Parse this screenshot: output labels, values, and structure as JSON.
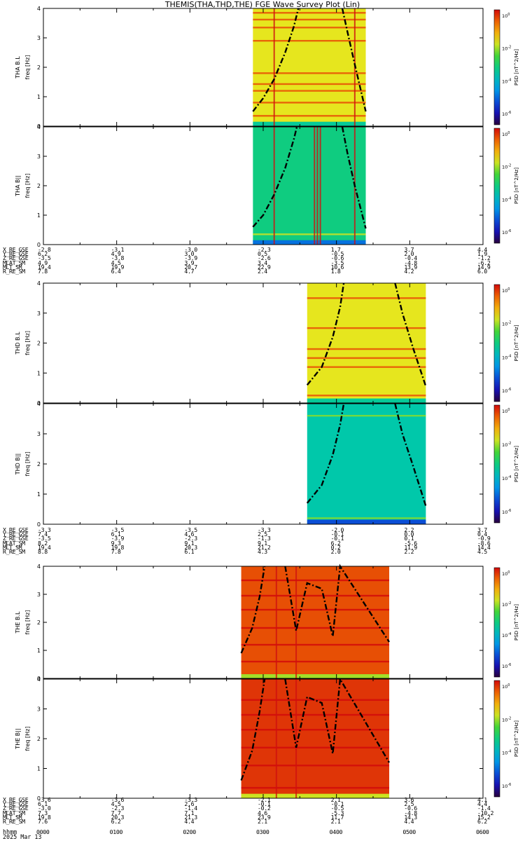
{
  "title": "THEMIS(THA,THD,THE) FGE Wave Survey Plot (Lin)",
  "x_ticks": [
    "0000",
    "0100",
    "0200",
    "0300",
    "0400",
    "0500",
    "0600"
  ],
  "footer": {
    "time_label": "hhmm",
    "date": "2025 Mar 13"
  },
  "colors": {
    "background": "#ffffff",
    "axis": "#000000"
  },
  "ephemeris_rows": [
    "X_RE_GSE",
    "Y_RE_GSE",
    "Z_RE_GSE",
    "MLAT_SM",
    "MLT_SM",
    "R_RE_SM"
  ],
  "ephemeris": [
    {
      "probe": "THA",
      "values": [
        [
          "-2.8",
          "-3.1",
          "-3.0",
          "-2.3",
          "1.7",
          "3.7",
          "4.4"
        ],
        [
          "6.2",
          "4.9",
          "3.0",
          "0.5",
          "-0.5",
          "2.0",
          "1.9"
        ],
        [
          "-3.5",
          "-3.8",
          "-3.9",
          "-2.6",
          "-0.6",
          "-0.4",
          "-1.2"
        ],
        [
          "4.9",
          "4.5",
          "3.9",
          "3.4",
          "-3.5",
          "-4.8",
          "-6.2"
        ],
        [
          "19.4",
          "19.9",
          "20.7",
          "22.9",
          "10.6",
          "13.9",
          "14.9"
        ],
        [
          "7.8",
          "6.4",
          "4.7",
          "2.4",
          "1.8",
          "4.2",
          "6.0"
        ]
      ]
    },
    {
      "probe": "THD",
      "values": [
        [
          "-3.3",
          "-3.5",
          "-3.5",
          "-3.3",
          "-2.0",
          "2.2",
          "3.7"
        ],
        [
          "7.4",
          "6.1",
          "4.6",
          "2.5",
          "-0.1",
          "0.0",
          "0.4"
        ],
        [
          "-3.5",
          "-3.9",
          "-2.3",
          "-1.3",
          "-0.1",
          "0.1",
          "-0.9"
        ],
        [
          "8.2",
          "9.3",
          "9.1",
          "9.1",
          "6.2",
          "-5.6",
          "-8.6"
        ],
        [
          "19.4",
          "19.8",
          "20.3",
          "21.2",
          "0.2",
          "11.9",
          "14.4"
        ],
        [
          "8.8",
          "7.8",
          "6.1",
          "4.3",
          "2.0",
          "2.2",
          "4.5"
        ]
      ]
    },
    {
      "probe": "THE",
      "values": [
        [
          "-3.6",
          "-3.6",
          "-3.3",
          "-2.1",
          "2.1",
          "3.6",
          "4.1"
        ],
        [
          "6.1",
          "4.5",
          "2.6",
          "-0.1",
          "-0.1",
          "2.5",
          "4.4"
        ],
        [
          "-3.0",
          "-2.3",
          "-1.4",
          "-0.2",
          "-0.5",
          "-0.6",
          "-1.4"
        ],
        [
          "7.3",
          "7.7",
          "7.1",
          "4.6",
          "-5.3",
          "-4.8",
          "-10.2"
        ],
        [
          "19.8",
          "20.3",
          "21.3",
          "23.9",
          "11.7",
          "14.3",
          "15.2"
        ],
        [
          "7.6",
          "6.2",
          "4.4",
          "2.1",
          "2.1",
          "4.4",
          "6.2"
        ]
      ]
    }
  ],
  "chart_data": [
    {
      "type": "heatmap",
      "panel": "THA B.L",
      "ylabel": [
        "THA B.L",
        "freq [Hz]"
      ],
      "colorbar_label": "PSD [nT^2/Hz]",
      "colorbar_ticks": [
        "10^0",
        "10^-2",
        "10^-4",
        "10^-6"
      ],
      "ylim": [
        0,
        4
      ],
      "yticks": [
        0,
        1,
        2,
        3,
        4
      ],
      "x_range_hours": [
        0,
        6
      ],
      "data_start_hour": 2.86,
      "data_end_hour": 4.4,
      "background_level": 0.72,
      "horizontal_lines_hz": [
        0.35,
        0.8,
        1.2,
        1.43,
        1.8,
        2.9,
        3.35,
        3.62,
        3.85
      ],
      "vertical_lines_hour": [
        3.15,
        4.25
      ],
      "gyro_curves_hour_hz": [
        [
          2.86,
          0.5
        ],
        [
          3.0,
          0.95
        ],
        [
          3.15,
          1.6
        ],
        [
          3.3,
          2.5
        ],
        [
          3.42,
          3.4
        ],
        [
          3.48,
          4.0
        ],
        [
          4.08,
          4.0
        ],
        [
          4.15,
          3.2
        ],
        [
          4.25,
          2.1
        ],
        [
          4.4,
          0.5
        ]
      ]
    },
    {
      "type": "heatmap",
      "panel": "THA B||",
      "ylabel": [
        "THA B||",
        "freq [Hz]"
      ],
      "colorbar_label": "PSD [nT^2/Hz]",
      "colorbar_ticks": [
        "10^0",
        "10^-2",
        "10^-4",
        "10^-6"
      ],
      "ylim": [
        0,
        4
      ],
      "yticks": [
        0,
        1,
        2,
        3,
        4
      ],
      "x_range_hours": [
        0,
        6
      ],
      "data_start_hour": 2.86,
      "data_end_hour": 4.4,
      "background_level": 0.5,
      "horizontal_lines_hz": [
        0.35
      ],
      "vertical_lines_hour": [
        3.15,
        3.7,
        3.74,
        3.78,
        4.25
      ],
      "gyro_curves_hour_hz": [
        [
          2.86,
          0.6
        ],
        [
          3.0,
          1.0
        ],
        [
          3.15,
          1.7
        ],
        [
          3.3,
          2.6
        ],
        [
          3.42,
          3.6
        ],
        [
          3.46,
          4.0
        ],
        [
          4.08,
          4.0
        ],
        [
          4.15,
          3.1
        ],
        [
          4.25,
          2.0
        ],
        [
          4.4,
          0.55
        ]
      ]
    },
    {
      "type": "heatmap",
      "panel": "THD B.L",
      "ylabel": [
        "THD B.L",
        "freq [Hz]"
      ],
      "colorbar_label": "PSD [nT^2/Hz]",
      "colorbar_ticks": [
        "10^0",
        "10^-2",
        "10^-4",
        "10^-6"
      ],
      "ylim": [
        0,
        4
      ],
      "yticks": [
        0,
        1,
        2,
        3,
        4
      ],
      "x_range_hours": [
        0,
        6
      ],
      "data_start_hour": 3.6,
      "data_end_hour": 5.22,
      "background_level": 0.72,
      "horizontal_lines_hz": [
        0.25,
        1.2,
        1.5,
        1.8,
        2.5,
        3.5
      ],
      "vertical_lines_hour": [],
      "gyro_curves_hour_hz": [
        [
          3.6,
          0.6
        ],
        [
          3.8,
          1.2
        ],
        [
          3.95,
          2.2
        ],
        [
          4.05,
          3.2
        ],
        [
          4.1,
          4.0
        ],
        [
          4.8,
          4.0
        ],
        [
          4.9,
          3.0
        ],
        [
          5.05,
          1.8
        ],
        [
          5.22,
          0.55
        ]
      ]
    },
    {
      "type": "heatmap",
      "panel": "THD B||",
      "ylabel": [
        "THD B||",
        "freq [Hz]"
      ],
      "colorbar_label": "PSD [nT^2/Hz]",
      "colorbar_ticks": [
        "10^0",
        "10^-2",
        "10^-4",
        "10^-6"
      ],
      "ylim": [
        0,
        4
      ],
      "yticks": [
        0,
        1,
        2,
        3,
        4
      ],
      "x_range_hours": [
        0,
        6
      ],
      "data_start_hour": 3.6,
      "data_end_hour": 5.22,
      "background_level": 0.45,
      "horizontal_lines_hz": [
        0.2,
        3.6
      ],
      "vertical_lines_hour": [],
      "gyro_curves_hour_hz": [
        [
          3.6,
          0.7
        ],
        [
          3.8,
          1.3
        ],
        [
          3.95,
          2.3
        ],
        [
          4.05,
          3.3
        ],
        [
          4.1,
          4.0
        ],
        [
          4.8,
          4.0
        ],
        [
          4.9,
          3.0
        ],
        [
          5.05,
          1.9
        ],
        [
          5.22,
          0.6
        ]
      ]
    },
    {
      "type": "heatmap",
      "panel": "THE B.L",
      "ylabel": [
        "THE B.L",
        "freq [Hz]"
      ],
      "colorbar_label": "PSD [nT^2/Hz]",
      "colorbar_ticks": [
        "10^0",
        "10^-2",
        "10^-4",
        "10^-6"
      ],
      "ylim": [
        0,
        4
      ],
      "yticks": [
        0,
        1,
        2,
        3,
        4
      ],
      "x_range_hours": [
        0,
        6
      ],
      "data_start_hour": 2.7,
      "data_end_hour": 4.72,
      "background_level": 0.92,
      "horizontal_lines_hz": [
        0.6,
        1.2,
        1.8,
        2.45,
        2.95,
        3.5
      ],
      "vertical_lines_hour": [
        3.18,
        3.45
      ],
      "gyro_curves_hour_hz": [
        [
          2.7,
          0.9
        ],
        [
          2.85,
          1.8
        ],
        [
          2.95,
          2.9
        ],
        [
          3.02,
          4.0
        ],
        [
          3.3,
          4.0
        ],
        [
          3.45,
          1.7
        ],
        [
          3.6,
          3.4
        ],
        [
          3.8,
          3.2
        ],
        [
          3.95,
          1.5
        ],
        [
          4.05,
          4.0
        ],
        [
          4.72,
          1.3
        ]
      ]
    },
    {
      "type": "heatmap",
      "panel": "THE B||",
      "ylabel": [
        "THE B||",
        "freq [Hz]"
      ],
      "colorbar_label": "PSD [nT^2/Hz]",
      "colorbar_ticks": [
        "10^0",
        "10^-2",
        "10^-4",
        "10^-6"
      ],
      "ylim": [
        0,
        4
      ],
      "yticks": [
        0,
        1,
        2,
        3,
        4
      ],
      "x_range_hours": [
        0,
        6
      ],
      "data_start_hour": 2.7,
      "data_end_hour": 4.72,
      "background_level": 0.95,
      "horizontal_lines_hz": [
        0.35,
        1.1,
        1.7,
        2.3,
        2.8,
        3.3
      ],
      "vertical_lines_hour": [
        3.18,
        3.45
      ],
      "gyro_curves_hour_hz": [
        [
          2.7,
          0.6
        ],
        [
          2.85,
          1.6
        ],
        [
          2.95,
          2.9
        ],
        [
          3.02,
          4.0
        ],
        [
          3.3,
          4.0
        ],
        [
          3.45,
          1.7
        ],
        [
          3.6,
          3.4
        ],
        [
          3.8,
          3.2
        ],
        [
          3.95,
          1.5
        ],
        [
          4.05,
          4.0
        ],
        [
          4.72,
          1.2
        ]
      ]
    }
  ]
}
